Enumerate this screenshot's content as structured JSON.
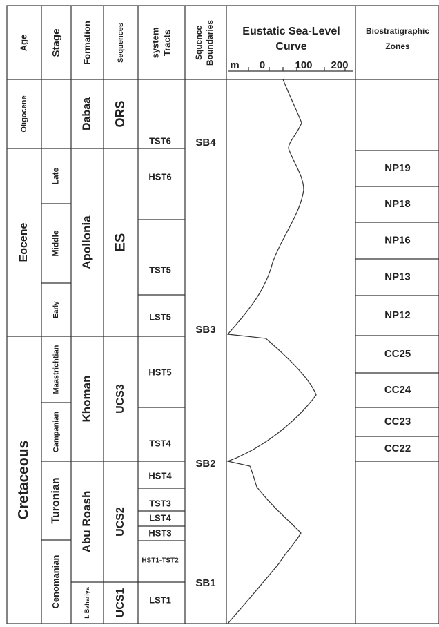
{
  "header": {
    "age": "Age",
    "stage": "Stage",
    "formation": "Formation",
    "sequences": "Sequences",
    "system_tracts": [
      "system",
      "Tracts"
    ],
    "sequence_boundaries": [
      "Squence",
      "Boundaries"
    ],
    "curve": [
      "Eustatic Sea-Level",
      "Curve"
    ],
    "curve_scale": [
      "m",
      "0",
      "100",
      "200"
    ],
    "zones": [
      "Biostratigraphic",
      "Zones"
    ]
  },
  "age": [
    "Oligocene",
    "Eocene",
    "Cretaceous"
  ],
  "stage": [
    null,
    "Late",
    "Middle",
    "Early",
    "Maastrichtian",
    "Campanian",
    "Turonian",
    "Cenomanian"
  ],
  "formation": [
    "Dabaa",
    "Apollonia",
    "Khoman",
    "Abu Roash",
    "l. Bahariya"
  ],
  "sequences": [
    "ORS",
    "ES",
    "UCS3",
    "UCS2",
    "UCS1"
  ],
  "system_tracts": [
    "TST6",
    "HST6",
    "TST5",
    "LST5",
    "HST5",
    "TST4",
    "HST4",
    "TST3",
    "LST4",
    "HST3",
    "HST1-TST2",
    "LST1"
  ],
  "sequence_boundaries": [
    "SB4",
    "SB3",
    "SB2",
    "SB1"
  ],
  "zones": [
    "NP19",
    "NP18",
    "NP16",
    "NP13",
    "NP12",
    "CC25",
    "CC24",
    "CC23",
    "CC22"
  ]
}
